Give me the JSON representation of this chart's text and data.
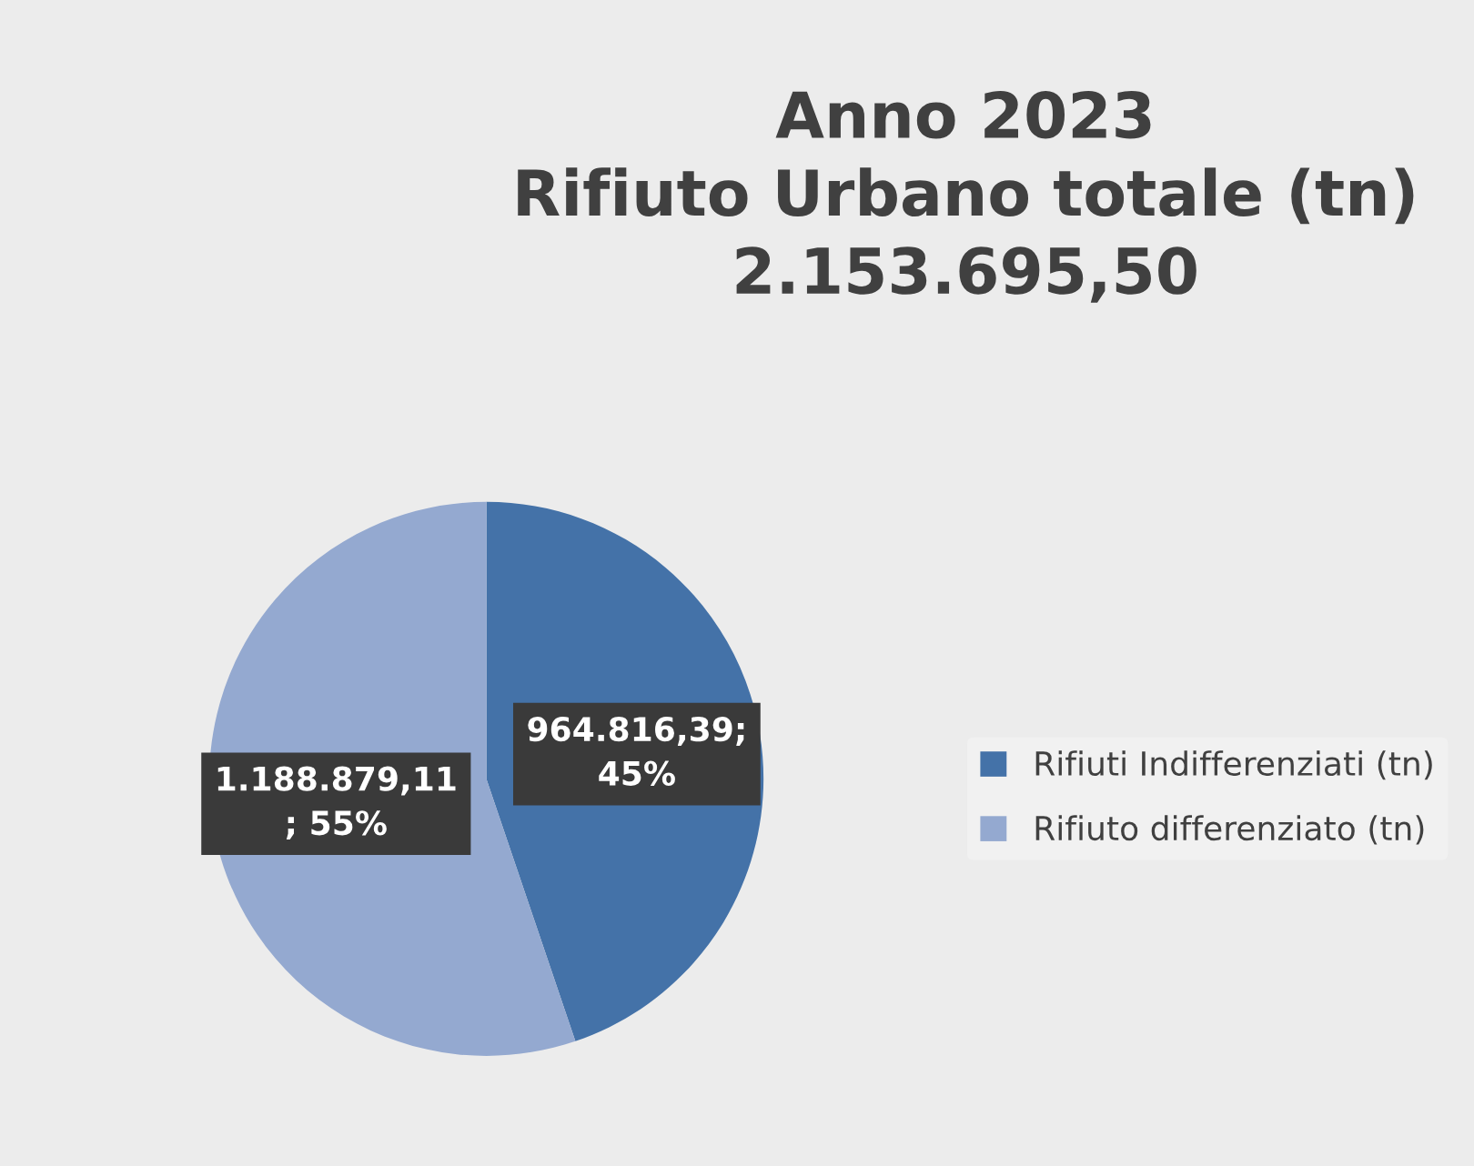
{
  "chart_data": {
    "type": "pie",
    "title": "Anno 2023\nRifiuto Urbano totale (tn)\n2.153.695,50",
    "categories": [
      "Rifiuti Indifferenziati (tn)",
      "Rifiuto differenziato (tn)"
    ],
    "values": [
      964816.39,
      1188879.11
    ],
    "colors": [
      "#4472a8",
      "#94a9d0"
    ],
    "value_labels": [
      "964.816,39;\n45%",
      "1.188.879,11\n; 55%"
    ],
    "legend": "right"
  }
}
